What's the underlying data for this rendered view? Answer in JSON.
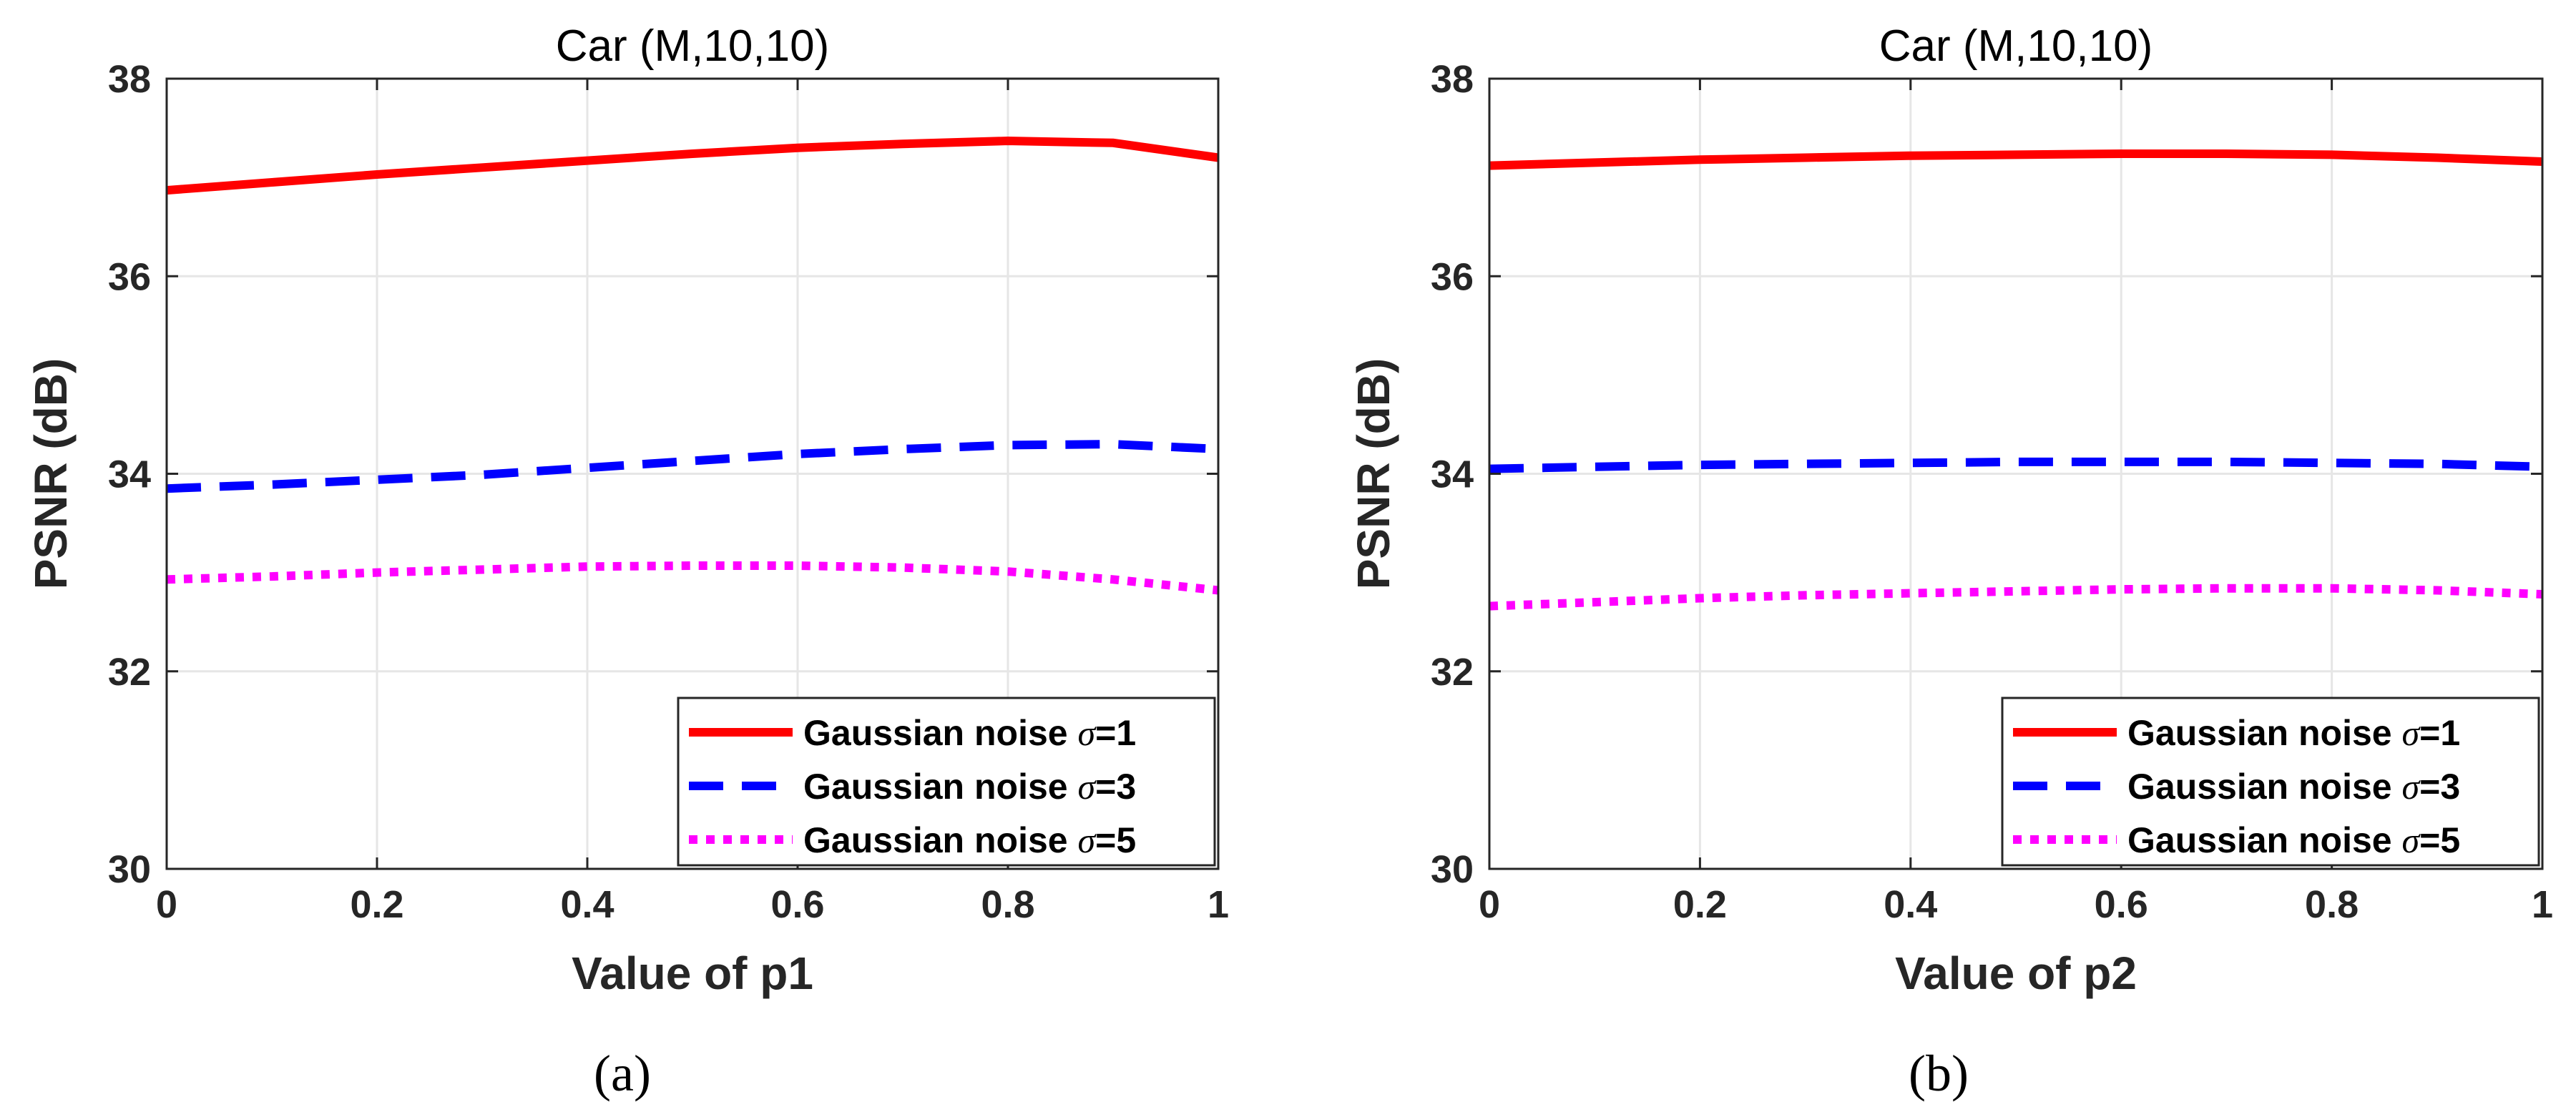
{
  "chart_data": [
    {
      "type": "line",
      "title": "Car (M,10,10)",
      "xlabel": "Value of p1",
      "ylabel": "PSNR (dB)",
      "caption": "(a)",
      "xlim": [
        0,
        1
      ],
      "ylim": [
        30,
        38
      ],
      "xticks": [
        "0",
        "0.2",
        "0.4",
        "0.6",
        "0.8",
        "1"
      ],
      "yticks": [
        "30",
        "32",
        "34",
        "36",
        "38"
      ],
      "grid": true,
      "legend_position": "bottom-right",
      "x": [
        0,
        0.1,
        0.2,
        0.3,
        0.4,
        0.5,
        0.6,
        0.7,
        0.8,
        0.9,
        1.0
      ],
      "series": [
        {
          "name": "Gaussian noise ",
          "sigma": "σ=1",
          "style": "solid",
          "color": "#ff0000",
          "values": [
            36.87,
            36.95,
            37.03,
            37.1,
            37.17,
            37.24,
            37.3,
            37.34,
            37.37,
            37.35,
            37.2
          ]
        },
        {
          "name": "Gaussian noise ",
          "sigma": "σ=3",
          "style": "dashed",
          "color": "#0000ff",
          "values": [
            33.85,
            33.89,
            33.94,
            33.99,
            34.06,
            34.13,
            34.2,
            34.25,
            34.29,
            34.3,
            34.25
          ]
        },
        {
          "name": "Gaussian noise ",
          "sigma": "σ=5",
          "style": "dotted",
          "color": "#ff00ff",
          "values": [
            32.93,
            32.96,
            33.0,
            33.03,
            33.06,
            33.07,
            33.07,
            33.05,
            33.01,
            32.93,
            32.82
          ]
        }
      ]
    },
    {
      "type": "line",
      "title": "Car (M,10,10)",
      "xlabel": "Value of p2",
      "ylabel": "PSNR (dB)",
      "caption": "(b)",
      "xlim": [
        0,
        1
      ],
      "ylim": [
        30,
        38
      ],
      "xticks": [
        "0",
        "0.2",
        "0.4",
        "0.6",
        "0.8",
        "1"
      ],
      "yticks": [
        "30",
        "32",
        "34",
        "36",
        "38"
      ],
      "grid": true,
      "legend_position": "bottom-right",
      "x": [
        0,
        0.1,
        0.2,
        0.3,
        0.4,
        0.5,
        0.6,
        0.7,
        0.8,
        0.9,
        1.0
      ],
      "series": [
        {
          "name": "Gaussian noise ",
          "sigma": "σ=1",
          "style": "solid",
          "color": "#ff0000",
          "values": [
            37.12,
            37.15,
            37.18,
            37.2,
            37.22,
            37.23,
            37.24,
            37.24,
            37.23,
            37.2,
            37.16
          ]
        },
        {
          "name": "Gaussian noise ",
          "sigma": "σ=3",
          "style": "dashed",
          "color": "#0000ff",
          "values": [
            34.05,
            34.07,
            34.09,
            34.1,
            34.11,
            34.12,
            34.12,
            34.12,
            34.11,
            34.1,
            34.07
          ]
        },
        {
          "name": "Gaussian noise ",
          "sigma": "σ=5",
          "style": "dotted",
          "color": "#ff00ff",
          "values": [
            32.66,
            32.7,
            32.74,
            32.77,
            32.79,
            32.81,
            32.83,
            32.84,
            32.84,
            32.82,
            32.78
          ]
        }
      ]
    }
  ]
}
